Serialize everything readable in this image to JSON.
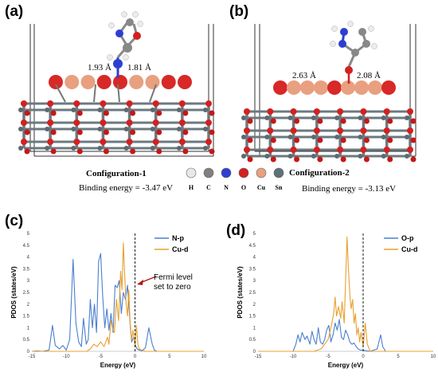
{
  "panels": {
    "a": {
      "label": "(a)",
      "caption": "Configuration-1",
      "binding": "Binding energy =  -3.47 eV",
      "dist1": "1.93 Å",
      "dist2": "1.81 Å"
    },
    "b": {
      "label": "(b)",
      "caption": "Configuration-2",
      "binding": "Binding energy =  -3.13 eV",
      "dist1": "2.63 Å",
      "dist2": "2.08 Å"
    },
    "c": {
      "label": "(c)",
      "annotation": [
        "Fermi level",
        "set to zero"
      ]
    },
    "d": {
      "label": "(d)"
    }
  },
  "element_legend": [
    {
      "symbol": "H",
      "color": "#e8e8e8"
    },
    {
      "symbol": "C",
      "color": "#808080"
    },
    {
      "symbol": "N",
      "color": "#2e3fd0"
    },
    {
      "symbol": "O",
      "color": "#d42020"
    },
    {
      "symbol": "Cu",
      "color": "#e8a080"
    },
    {
      "symbol": "Sn",
      "color": "#607078"
    }
  ],
  "chart_data": [
    {
      "type": "line",
      "panel": "c",
      "xlabel": "Energy (eV)",
      "ylabel": "PDOS (states/eV)",
      "xlim": [
        -15,
        10
      ],
      "ylim": [
        0,
        5
      ],
      "xticks": [
        -15,
        -10,
        -5,
        0,
        5,
        10
      ],
      "yticks": [
        0,
        0.5,
        1,
        1.5,
        2,
        2.5,
        3,
        3.5,
        4,
        4.5,
        5
      ],
      "legend_position": "top-right",
      "fermi_level": 0,
      "series": [
        {
          "name": "N-p",
          "color": "#4a7fcf",
          "x": [
            -15,
            -14.2,
            -13.5,
            -12.5,
            -12,
            -11.6,
            -11,
            -10.5,
            -10,
            -9.5,
            -9,
            -8.6,
            -8.2,
            -7.8,
            -7.5,
            -7.1,
            -6.8,
            -6.5,
            -6.2,
            -5.9,
            -5.6,
            -5.3,
            -5,
            -4.7,
            -4.4,
            -4.1,
            -3.8,
            -3.5,
            -3.2,
            -2.9,
            -2.6,
            -2.3,
            -2,
            -1.7,
            -1.4,
            -1.1,
            -0.8,
            -0.5,
            -0.2,
            0,
            0.3,
            0.6,
            1,
            1.5,
            2,
            2.5,
            2.8,
            3.2,
            4,
            5,
            7,
            10
          ],
          "y": [
            0,
            0.02,
            0,
            0.05,
            1.1,
            0.25,
            0.1,
            0.25,
            0.05,
            0.5,
            3.9,
            1.2,
            0.4,
            0.2,
            1.4,
            0.3,
            0.5,
            2.2,
            1.0,
            2.0,
            0.8,
            3.8,
            4.15,
            2.3,
            1.0,
            1.8,
            0.9,
            1.6,
            0.8,
            2.8,
            2.7,
            3.0,
            1.6,
            2.5,
            2.2,
            2.8,
            1.5,
            0.4,
            0.6,
            0.3,
            0.1,
            0.05,
            0.02,
            0.15,
            1.0,
            0.3,
            0.05,
            0,
            0,
            0,
            0,
            0
          ]
        },
        {
          "name": "Cu-d",
          "color": "#e8a030",
          "x": [
            -15,
            -7,
            -6.5,
            -6,
            -5.5,
            -5,
            -4.5,
            -4,
            -3.8,
            -3.5,
            -3.2,
            -3,
            -2.7,
            -2.4,
            -2.1,
            -1.9,
            -1.7,
            -1.5,
            -1.3,
            -1.1,
            -0.9,
            -0.7,
            -0.5,
            -0.3,
            0,
            0.2,
            0.4,
            0.6,
            1,
            1.5,
            2,
            10
          ],
          "y": [
            0,
            0,
            0.1,
            0.3,
            0.2,
            0.4,
            0.2,
            0.6,
            0.3,
            1.3,
            0.9,
            0.8,
            2.2,
            1.3,
            3.4,
            2.6,
            4.6,
            3.2,
            2.0,
            1.5,
            2.6,
            1.0,
            0.5,
            0.9,
            0.2,
            1.1,
            0.3,
            0.1,
            0.05,
            0,
            0,
            0
          ]
        }
      ]
    },
    {
      "type": "line",
      "panel": "d",
      "xlabel": "Energy (eV)",
      "ylabel": "PDOS (states/eV)",
      "xlim": [
        -15,
        10
      ],
      "ylim": [
        0,
        5
      ],
      "xticks": [
        -15,
        -10,
        -5,
        0,
        5,
        10
      ],
      "yticks": [
        0,
        0.5,
        1,
        1.5,
        2,
        2.5,
        3,
        3.5,
        4,
        4.5,
        5
      ],
      "legend_position": "top-right",
      "fermi_level": 0,
      "series": [
        {
          "name": "O-p",
          "color": "#4a7fcf",
          "x": [
            -15,
            -10,
            -9.6,
            -9.3,
            -9,
            -8.7,
            -8.3,
            -8,
            -7.6,
            -7.3,
            -7,
            -6.7,
            -6.4,
            -6.1,
            -5.8,
            -5.5,
            -5.2,
            -4.9,
            -4.6,
            -4.3,
            -4,
            -3.7,
            -3.4,
            -3.1,
            -2.8,
            -2.5,
            -2.2,
            -1.9,
            -1.6,
            -1.3,
            -1,
            -0.7,
            -0.4,
            0,
            0.5,
            1,
            2,
            2.5,
            2.8,
            3.2,
            4,
            10
          ],
          "y": [
            0,
            0,
            0.3,
            0.7,
            0.4,
            0.8,
            0.5,
            0.65,
            0.3,
            0.85,
            0.5,
            0.3,
            1.0,
            0.4,
            0.3,
            0.5,
            0.9,
            1.1,
            0.4,
            0.7,
            1.2,
            0.9,
            1.35,
            0.6,
            0.5,
            0.9,
            0.7,
            0.4,
            0.3,
            0.35,
            0.2,
            0.1,
            0.05,
            0.05,
            0.02,
            0,
            0.1,
            0.7,
            0.2,
            0,
            0,
            0
          ]
        },
        {
          "name": "Cu-d",
          "color": "#e8a030",
          "x": [
            -15,
            -7,
            -6,
            -5.5,
            -5,
            -4.6,
            -4.2,
            -4,
            -3.8,
            -3.5,
            -3.2,
            -3,
            -2.7,
            -2.5,
            -2.3,
            -2.1,
            -1.9,
            -1.7,
            -1.5,
            -1.3,
            -1.1,
            -0.9,
            -0.7,
            -0.5,
            -0.3,
            0,
            0.3,
            0.6,
            1,
            10
          ],
          "y": [
            0,
            0,
            0.1,
            0.3,
            0.5,
            1.0,
            1.6,
            2.3,
            1.5,
            1.9,
            1.4,
            2.1,
            1.2,
            3.0,
            4.85,
            3.5,
            2.4,
            1.8,
            2.2,
            1.2,
            1.6,
            0.7,
            1.0,
            0.4,
            0.8,
            0.2,
            1.2,
            0.3,
            0,
            0
          ]
        }
      ]
    }
  ]
}
